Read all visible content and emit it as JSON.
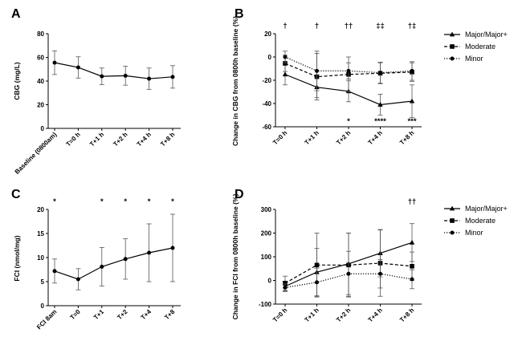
{
  "figure": {
    "panels": [
      "A",
      "B",
      "C",
      "D"
    ]
  },
  "chart_data": [
    {
      "id": "A",
      "panel_label": "A",
      "type": "line",
      "categories": [
        "Baseline (0800am)",
        "T=0 h",
        "T+1 h",
        "T+2 h",
        "T+4 h",
        "T+8 h"
      ],
      "ylabel": "CBG (mg/L)",
      "ylim": [
        0,
        80
      ],
      "yticks": [
        0,
        20,
        40,
        60,
        80
      ],
      "series": [
        {
          "values": [
            55.5,
            51.5,
            44,
            44.5,
            42,
            43.5
          ],
          "err": [
            10,
            9,
            7,
            8,
            9,
            9.5
          ],
          "marker": "dot",
          "dash": "solid"
        }
      ],
      "annotations": []
    },
    {
      "id": "B",
      "panel_label": "B",
      "type": "line",
      "categories": [
        "T=0 h",
        "T+1 h",
        "T+2 h",
        "T+4 h",
        "T+8 h"
      ],
      "ylabel": "Change in CBG from 0800h baseline (%)",
      "ylim": [
        -60,
        20
      ],
      "yticks": [
        -60,
        -40,
        -20,
        0,
        20
      ],
      "legend": [
        "Major/Major+",
        "Moderate",
        "Minor"
      ],
      "series": [
        {
          "name": "Major/Major+",
          "values": [
            -15,
            -26,
            -29.5,
            -41,
            -38
          ],
          "err": [
            9,
            9,
            9,
            9,
            14
          ],
          "marker": "triangle",
          "dash": "solid"
        },
        {
          "name": "Moderate",
          "values": [
            -5.5,
            -17,
            -15,
            -14,
            -13
          ],
          "err": [
            7,
            20,
            15,
            9,
            8
          ],
          "marker": "square",
          "dash": "dashed"
        },
        {
          "name": "Minor",
          "values": [
            0,
            -12,
            -12,
            -13.5,
            -12
          ],
          "err": [
            5,
            17,
            7,
            9,
            8
          ],
          "marker": "dot",
          "dash": "dotted"
        }
      ],
      "annotations": [
        {
          "text": "†",
          "position": "top",
          "index": 0
        },
        {
          "text": "†",
          "position": "top",
          "index": 1
        },
        {
          "text": "††",
          "position": "top",
          "index": 2
        },
        {
          "text": "‡‡",
          "position": "top",
          "index": 3
        },
        {
          "text": "†‡",
          "position": "top",
          "index": 4
        },
        {
          "text": "*",
          "position": "bottom",
          "index": 2
        },
        {
          "text": "****",
          "position": "bottom",
          "index": 3
        },
        {
          "text": "***",
          "position": "bottom",
          "index": 4
        }
      ]
    },
    {
      "id": "C",
      "panel_label": "C",
      "type": "line",
      "categories": [
        "FCI 8am",
        "T=0",
        "T+1",
        "T+2",
        "T+4",
        "T+8"
      ],
      "ylabel": "FCI (nmol/mg)",
      "ylim": [
        0,
        20
      ],
      "yticks": [
        0,
        5,
        10,
        15,
        20
      ],
      "series": [
        {
          "values": [
            7.2,
            5.5,
            8.1,
            9.7,
            11,
            12
          ],
          "err": [
            2.5,
            2.2,
            4,
            4.2,
            6,
            7
          ],
          "marker": "dot",
          "dash": "solid"
        }
      ],
      "annotations": [
        {
          "text": "*",
          "position": "top",
          "index": 0
        },
        {
          "text": "*",
          "position": "top",
          "index": 2
        },
        {
          "text": "*",
          "position": "top",
          "index": 3
        },
        {
          "text": "*",
          "position": "top",
          "index": 4
        },
        {
          "text": "*",
          "position": "top",
          "index": 5
        }
      ]
    },
    {
      "id": "D",
      "panel_label": "D",
      "type": "line",
      "categories": [
        "T=0 h",
        "T+1 h",
        "T+2 h",
        "T+4 h",
        "T+8 h"
      ],
      "ylabel": "Change in FCI from 0800h baseline (%)",
      "ylim": [
        -100,
        300
      ],
      "yticks": [
        -100,
        0,
        100,
        200,
        300
      ],
      "legend": [
        "Major/Major+",
        "Moderate",
        "Minor"
      ],
      "series": [
        {
          "name": "Major/Major+",
          "values": [
            -25,
            35,
            70,
            115,
            160
          ],
          "err": [
            22,
            100,
            130,
            100,
            80
          ],
          "marker": "triangle",
          "dash": "solid"
        },
        {
          "name": "Moderate",
          "values": [
            -12,
            65,
            65,
            73,
            60
          ],
          "err": [
            30,
            135,
            135,
            140,
            60
          ],
          "marker": "square",
          "dash": "dashed"
        },
        {
          "name": "Minor",
          "values": [
            -30,
            -8,
            28,
            28,
            5
          ],
          "err": [
            15,
            60,
            95,
            60,
            40
          ],
          "marker": "dot",
          "dash": "dotted"
        }
      ],
      "annotations": [
        {
          "text": "††",
          "position": "top",
          "index": 4
        }
      ]
    }
  ]
}
